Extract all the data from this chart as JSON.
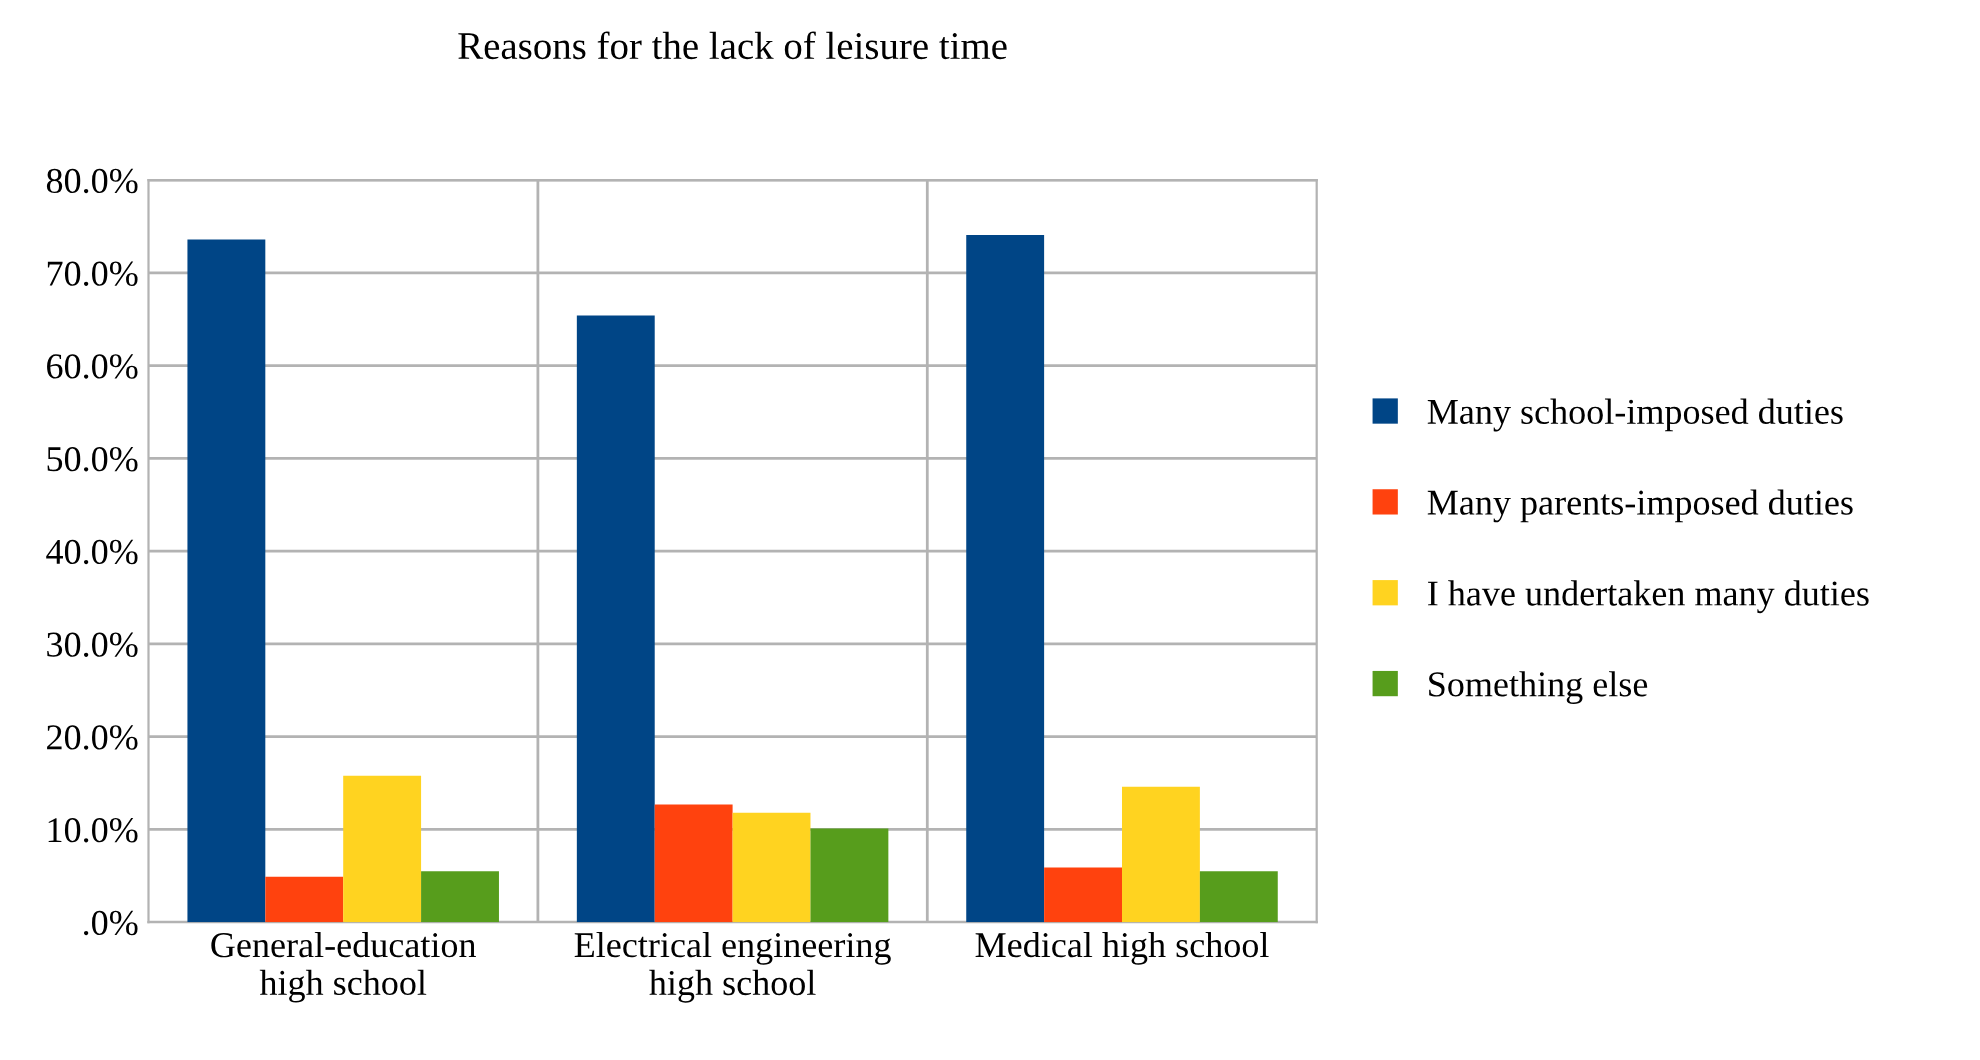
{
  "chart_data": {
    "type": "bar",
    "title": "Reasons for the lack of leisure time",
    "categories": [
      "General-education\nhigh school",
      "Electrical engineering\nhigh school",
      "Medical high school"
    ],
    "series": [
      {
        "name": "Many school-imposed duties",
        "color": "#004586",
        "values": [
          73.6,
          65.4,
          74.1
        ]
      },
      {
        "name": "Many parents-imposed duties",
        "color": "#ff420e",
        "values": [
          4.9,
          12.7,
          5.9
        ]
      },
      {
        "name": "I have undertaken many duties",
        "color": "#ffd320",
        "values": [
          15.8,
          11.8,
          14.6
        ]
      },
      {
        "name": "Something else",
        "color": "#579d1c",
        "values": [
          5.5,
          10.1,
          5.5
        ]
      }
    ],
    "ylim": [
      0,
      80
    ],
    "yticks": [
      {
        "value": 0,
        "label": ".0%"
      },
      {
        "value": 10,
        "label": "10.0%"
      },
      {
        "value": 20,
        "label": "20.0%"
      },
      {
        "value": 30,
        "label": "30.0%"
      },
      {
        "value": 40,
        "label": "40.0%"
      },
      {
        "value": 50,
        "label": "50.0%"
      },
      {
        "value": 60,
        "label": "60.0%"
      },
      {
        "value": 70,
        "label": "70.0%"
      },
      {
        "value": 80,
        "label": "80.0%"
      }
    ],
    "grid": "y",
    "legend": "right"
  }
}
